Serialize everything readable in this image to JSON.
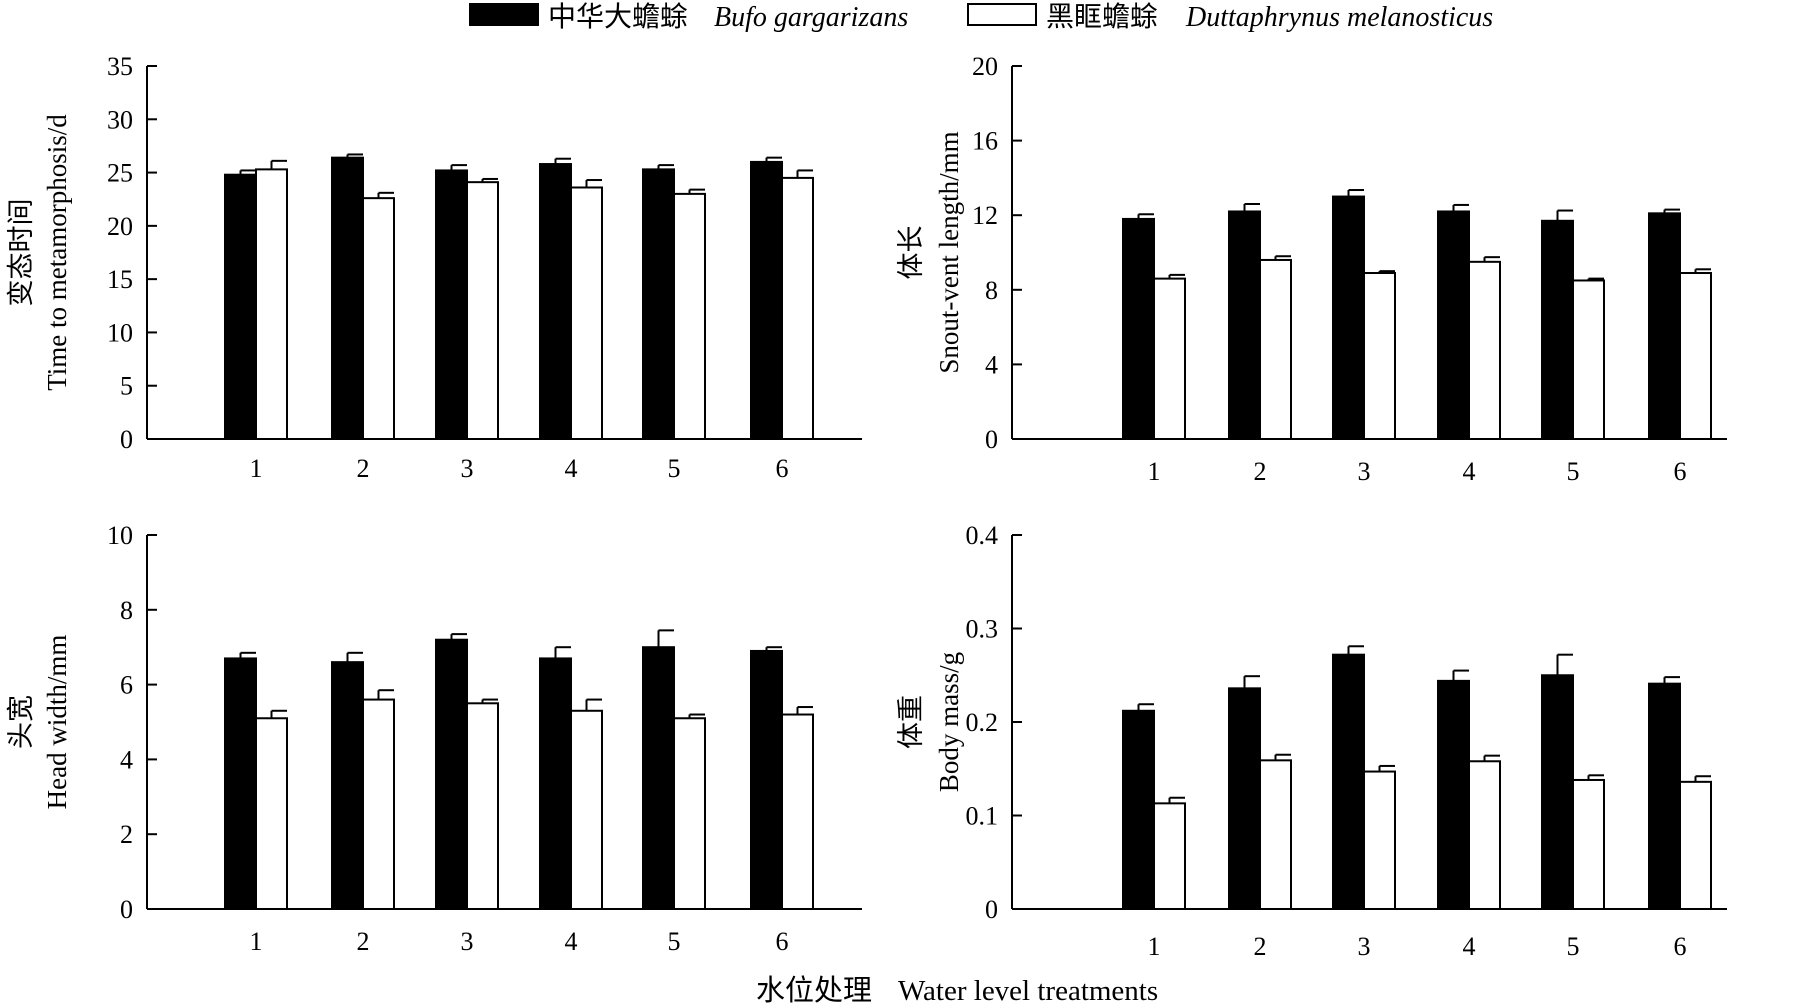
{
  "legend": {
    "series": [
      {
        "cn": "中华大蟾蜍",
        "latin": "Bufo gargarizans",
        "fill": "#000000"
      },
      {
        "cn": "黑眶蟾蜍",
        "latin": "Duttaphrynus melanosticus",
        "fill": "#ffffff"
      }
    ]
  },
  "x_title": {
    "cn": "水位处理",
    "en": "Water level treatments"
  },
  "chart_data": [
    {
      "type": "bar",
      "ylabel_cn": "变态时间",
      "ylabel_en": "Time to metamorphosis/d",
      "categories": [
        "1",
        "2",
        "3",
        "4",
        "5",
        "6"
      ],
      "ylim": [
        0,
        35
      ],
      "yticks": [
        "0",
        "5",
        "10",
        "15",
        "20",
        "25",
        "30",
        "35"
      ],
      "series": [
        {
          "name": "中华大蟾蜍 Bufo gargarizans",
          "values": [
            24.8,
            26.4,
            25.2,
            25.8,
            25.3,
            26.0
          ],
          "errors": [
            0.4,
            0.3,
            0.5,
            0.5,
            0.4,
            0.4
          ]
        },
        {
          "name": "黑眶蟾蜍 Duttaphrynus melanosticus",
          "values": [
            25.3,
            22.6,
            24.1,
            23.6,
            23.0,
            24.5
          ],
          "errors": [
            0.8,
            0.5,
            0.3,
            0.7,
            0.4,
            0.7
          ]
        }
      ]
    },
    {
      "type": "bar",
      "ylabel_cn": "体长",
      "ylabel_en": "Snout-vent length/mm",
      "categories": [
        "1",
        "2",
        "3",
        "4",
        "5",
        "6"
      ],
      "ylim": [
        0,
        20
      ],
      "yticks": [
        "0",
        "4",
        "8",
        "12",
        "16",
        "20"
      ],
      "series": [
        {
          "name": "中华大蟾蜍 Bufo gargarizans",
          "values": [
            11.8,
            12.2,
            13.0,
            12.2,
            11.7,
            12.1
          ],
          "errors": [
            0.25,
            0.4,
            0.35,
            0.35,
            0.55,
            0.2
          ]
        },
        {
          "name": "黑眶蟾蜍 Duttaphrynus melanosticus",
          "values": [
            8.6,
            9.6,
            8.9,
            9.5,
            8.5,
            8.9
          ],
          "errors": [
            0.2,
            0.2,
            0.1,
            0.25,
            0.1,
            0.2
          ]
        }
      ]
    },
    {
      "type": "bar",
      "ylabel_cn": "头宽",
      "ylabel_en": "Head width/mm",
      "categories": [
        "1",
        "2",
        "3",
        "4",
        "5",
        "6"
      ],
      "ylim": [
        0,
        10
      ],
      "yticks": [
        "0",
        "2",
        "4",
        "6",
        "8",
        "10"
      ],
      "series": [
        {
          "name": "中华大蟾蜍 Bufo gargarizans",
          "values": [
            6.7,
            6.6,
            7.2,
            6.7,
            7.0,
            6.9
          ],
          "errors": [
            0.15,
            0.25,
            0.15,
            0.3,
            0.45,
            0.1
          ]
        },
        {
          "name": "黑眶蟾蜍 Duttaphrynus melanosticus",
          "values": [
            5.1,
            5.6,
            5.5,
            5.3,
            5.1,
            5.2
          ],
          "errors": [
            0.2,
            0.25,
            0.1,
            0.3,
            0.1,
            0.2
          ]
        }
      ]
    },
    {
      "type": "bar",
      "ylabel_cn": "体重",
      "ylabel_en": "Body mass/g",
      "categories": [
        "1",
        "2",
        "3",
        "4",
        "5",
        "6"
      ],
      "ylim": [
        0,
        0.4
      ],
      "yticks": [
        "0",
        "0.1",
        "0.2",
        "0.3",
        "0.4"
      ],
      "series": [
        {
          "name": "中华大蟾蜍 Bufo gargarizans",
          "values": [
            0.212,
            0.236,
            0.272,
            0.244,
            0.25,
            0.241
          ],
          "errors": [
            0.007,
            0.013,
            0.009,
            0.011,
            0.022,
            0.007
          ]
        },
        {
          "name": "黑眶蟾蜍 Duttaphrynus melanosticus",
          "values": [
            0.113,
            0.159,
            0.147,
            0.158,
            0.138,
            0.136
          ],
          "errors": [
            0.006,
            0.006,
            0.006,
            0.006,
            0.005,
            0.006
          ]
        }
      ]
    }
  ]
}
